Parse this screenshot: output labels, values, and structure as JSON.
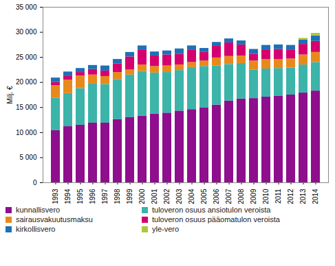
{
  "chart_data": {
    "type": "bar",
    "stacked": true,
    "y_label": "Milj. €",
    "categories": [
      "1993",
      "1994",
      "1995",
      "1996",
      "1997",
      "1998",
      "1999",
      "2000",
      "2001",
      "2002",
      "2003",
      "2004",
      "2005",
      "2006",
      "2007",
      "2008",
      "2009",
      "2010",
      "2011",
      "2012",
      "2013",
      "2014"
    ],
    "ylim": [
      0,
      35000
    ],
    "yticks": [
      0,
      {
        "value": 5000,
        "label": "5 000"
      },
      {
        "value": 10000,
        "label": "10 000"
      },
      {
        "value": 15000,
        "label": "15 000"
      },
      {
        "value": 20000,
        "label": "20 000"
      },
      {
        "value": 25000,
        "label": "25 000"
      },
      {
        "value": 30000,
        "label": "30 000"
      },
      {
        "value": 35000,
        "label": "35 000"
      }
    ],
    "grid": false,
    "legend": "bottom",
    "series": [
      {
        "name": "kunnallisvero",
        "color": "#8e0e8e",
        "values": [
          10400,
          11200,
          11500,
          11900,
          11900,
          12600,
          13000,
          13300,
          13700,
          13900,
          14300,
          14600,
          14900,
          15500,
          16300,
          16700,
          16800,
          17100,
          17300,
          17500,
          17900,
          18300
        ]
      },
      {
        "name": "tuloveron osuus ansiotulon veroista",
        "color": "#3cb4a9",
        "values": [
          6500,
          6600,
          7300,
          7800,
          7700,
          8000,
          8500,
          8900,
          8200,
          8100,
          8100,
          8400,
          8300,
          7800,
          7300,
          7100,
          5700,
          5600,
          5500,
          5400,
          5600,
          5700
        ]
      },
      {
        "name": "sairausvakuutusmaksu",
        "color": "#e8891c",
        "values": [
          2500,
          2700,
          2500,
          1800,
          1600,
          1400,
          1000,
          1300,
          1300,
          1300,
          1100,
          1000,
          1100,
          1600,
          1600,
          1500,
          1800,
          1900,
          1800,
          1800,
          2000,
          2000
        ]
      },
      {
        "name": "tuloveron osuus pääomatulon veroista",
        "color": "#d4006f",
        "values": [
          600,
          700,
          700,
          1100,
          1100,
          1700,
          2600,
          3000,
          2100,
          2200,
          2100,
          2500,
          1700,
          2300,
          2700,
          2200,
          1300,
          1900,
          2000,
          1800,
          2100,
          2200
        ]
      },
      {
        "name": "kirkollisvero",
        "color": "#1f70b4",
        "values": [
          900,
          900,
          800,
          800,
          1000,
          900,
          900,
          800,
          800,
          800,
          1100,
          800,
          800,
          800,
          800,
          800,
          1000,
          900,
          900,
          900,
          900,
          1100
        ]
      },
      {
        "name": "yle-vero",
        "color": "#a9c83b",
        "values": [
          null,
          null,
          null,
          null,
          null,
          null,
          null,
          null,
          null,
          null,
          null,
          null,
          null,
          null,
          null,
          null,
          null,
          null,
          null,
          null,
          300,
          500
        ]
      }
    ]
  }
}
